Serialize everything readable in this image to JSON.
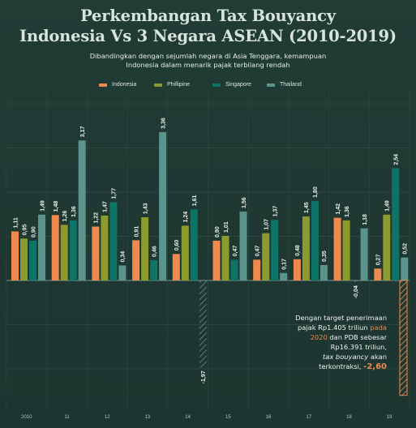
{
  "header": {
    "title_line1": "Perkembangan Tax Bouyancy",
    "title_line2": "Indonesia Vs 3 Negara ASEAN (2010-2019)",
    "subtitle_line1": "Dibandingkan dengan sejumlah negara di Asia Tenggara, kemampuan",
    "subtitle_line2": "Indonesia dalam menarik pajak terbilang rendah"
  },
  "legend": [
    {
      "label": "Indonesia",
      "color": "#f0894d"
    },
    {
      "label": "Phillipine",
      "color": "#8c9a2e"
    },
    {
      "label": "Singapore",
      "color": "#0f7468"
    },
    {
      "label": "Thailand",
      "color": "#5b948c"
    }
  ],
  "chart_data": {
    "type": "bar",
    "categories": [
      "2010",
      "11",
      "12",
      "13",
      "14",
      "15",
      "16",
      "17",
      "18",
      "19"
    ],
    "series": [
      {
        "name": "Indonesia",
        "values": [
          1.11,
          1.48,
          1.22,
          0.91,
          0.6,
          0.9,
          0.47,
          0.48,
          1.42,
          0.27
        ]
      },
      {
        "name": "Phillipine",
        "values": [
          0.95,
          1.26,
          1.47,
          1.43,
          1.24,
          1.01,
          1.07,
          1.45,
          1.36,
          1.49
        ]
      },
      {
        "name": "Singapore",
        "values": [
          0.9,
          1.36,
          1.77,
          0.46,
          1.61,
          0.47,
          1.37,
          1.8,
          -0.04,
          2.54
        ]
      },
      {
        "name": "Thailand",
        "values": [
          1.49,
          3.17,
          0.34,
          3.36,
          -1.97,
          1.56,
          0.17,
          0.35,
          1.18,
          0.52
        ]
      }
    ],
    "data_labels": [
      [
        "1,11",
        "1,48",
        "1,22",
        "0,91",
        "0,60",
        "0,90",
        "0,47",
        "0,48",
        "1,42",
        "0,27"
      ],
      [
        "0,95",
        "1,26",
        "1,47",
        "1,43",
        "1,24",
        "1,01",
        "1,07",
        "1,45",
        "1,36",
        "1,49"
      ],
      [
        "0,90",
        "1,36",
        "1,77",
        "0,46",
        "1,61",
        "0,47",
        "1,37",
        "1,80",
        "-0,04",
        "2,54"
      ],
      [
        "1,49",
        "3,17",
        "0,34",
        "3,36",
        "-1,97",
        "1,56",
        "0,17",
        "0,35",
        "1,18",
        "0,52"
      ]
    ],
    "projection": {
      "category": "19",
      "value": -2.6,
      "label": "-2,60",
      "color": "#f0894d"
    },
    "ylim": [
      -2.7,
      4.1
    ],
    "gridlines": [
      4,
      3,
      2,
      1,
      0,
      -1,
      -2
    ],
    "grid": true,
    "legend_position": "top"
  },
  "annotation": {
    "line1": "Dengan target penerimaan",
    "line2a": "pajak Rp1.405 triliun ",
    "line2b": "pada",
    "line3a": "2020",
    "line3b": " dan PDB sebesar",
    "line4": "Rp16.391 triliun,",
    "line5a": "tax bouyancy",
    "line5b": " akan",
    "line6a": "terkontraksi, ",
    "line6b": "-2,60"
  }
}
